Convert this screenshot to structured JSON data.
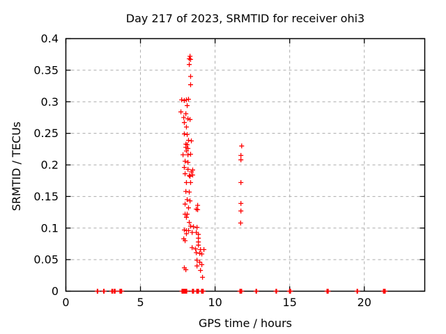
{
  "chart_data": {
    "type": "scatter",
    "title": "Day 217 of 2023, SRMTID for receiver ohi3",
    "xlabel": "GPS time / hours",
    "ylabel": "SRMTID / TECUs",
    "xlim": [
      0,
      24.05
    ],
    "ylim": [
      0,
      0.4
    ],
    "grid": true,
    "legend": "none",
    "background": "#ffffff",
    "grid_color": "#aaaaaa",
    "axis_color": "#000000",
    "marker": {
      "shape": "plus",
      "color": "#ff0000",
      "size": 7
    },
    "xticks": [
      {
        "value": 0,
        "label": "0"
      },
      {
        "value": 5,
        "label": "5"
      },
      {
        "value": 10,
        "label": "10"
      },
      {
        "value": 15,
        "label": "15"
      },
      {
        "value": 20,
        "label": "20"
      }
    ],
    "yticks": [
      {
        "value": 0,
        "label": "0"
      },
      {
        "value": 0.05,
        "label": "0.05"
      },
      {
        "value": 0.1,
        "label": "0.1"
      },
      {
        "value": 0.15,
        "label": "0.15"
      },
      {
        "value": 0.2,
        "label": "0.2"
      },
      {
        "value": 0.25,
        "label": "0.25"
      },
      {
        "value": 0.3,
        "label": "0.3"
      },
      {
        "value": 0.35,
        "label": "0.35"
      },
      {
        "value": 0.4,
        "label": "0.4"
      }
    ],
    "series": [
      {
        "name": "SRMTID",
        "points": [
          [
            8.32,
            0.372
          ],
          [
            8.27,
            0.368
          ],
          [
            8.36,
            0.367
          ],
          [
            8.27,
            0.359
          ],
          [
            8.36,
            0.34
          ],
          [
            8.36,
            0.327
          ],
          [
            7.76,
            0.303
          ],
          [
            7.94,
            0.302
          ],
          [
            8.08,
            0.303
          ],
          [
            8.22,
            0.304
          ],
          [
            8.13,
            0.294
          ],
          [
            7.71,
            0.284
          ],
          [
            8.04,
            0.281
          ],
          [
            7.9,
            0.275
          ],
          [
            8.18,
            0.273
          ],
          [
            8.32,
            0.272
          ],
          [
            7.94,
            0.267
          ],
          [
            8.08,
            0.26
          ],
          [
            7.94,
            0.249
          ],
          [
            8.13,
            0.248
          ],
          [
            8.22,
            0.239
          ],
          [
            8.41,
            0.238
          ],
          [
            8.04,
            0.233
          ],
          [
            8.13,
            0.232
          ],
          [
            8.04,
            0.228
          ],
          [
            8.18,
            0.226
          ],
          [
            8.08,
            0.222
          ],
          [
            7.85,
            0.216
          ],
          [
            8.18,
            0.216
          ],
          [
            8.36,
            0.217
          ],
          [
            7.99,
            0.206
          ],
          [
            8.18,
            0.204
          ],
          [
            7.94,
            0.196
          ],
          [
            8.18,
            0.193
          ],
          [
            8.5,
            0.192
          ],
          [
            8.41,
            0.189
          ],
          [
            7.99,
            0.186
          ],
          [
            8.27,
            0.183
          ],
          [
            8.5,
            0.184
          ],
          [
            8.32,
            0.182
          ],
          [
            8.08,
            0.172
          ],
          [
            8.36,
            0.172
          ],
          [
            8.04,
            0.158
          ],
          [
            8.27,
            0.157
          ],
          [
            8.13,
            0.145
          ],
          [
            8.32,
            0.143
          ],
          [
            7.99,
            0.138
          ],
          [
            8.83,
            0.136
          ],
          [
            8.22,
            0.132
          ],
          [
            8.74,
            0.13
          ],
          [
            8.83,
            0.129
          ],
          [
            7.99,
            0.122
          ],
          [
            8.13,
            0.122
          ],
          [
            8.08,
            0.117
          ],
          [
            8.27,
            0.109
          ],
          [
            8.36,
            0.103
          ],
          [
            8.55,
            0.102
          ],
          [
            8.79,
            0.101
          ],
          [
            7.94,
            0.097
          ],
          [
            8.08,
            0.096
          ],
          [
            8.22,
            0.096
          ],
          [
            8.46,
            0.093
          ],
          [
            8.74,
            0.093
          ],
          [
            8.08,
            0.091
          ],
          [
            8.88,
            0.09
          ],
          [
            8.88,
            0.084
          ],
          [
            7.9,
            0.083
          ],
          [
            7.99,
            0.08
          ],
          [
            8.88,
            0.078
          ],
          [
            8.88,
            0.073
          ],
          [
            8.46,
            0.069
          ],
          [
            8.69,
            0.067
          ],
          [
            9.02,
            0.066
          ],
          [
            9.25,
            0.066
          ],
          [
            8.74,
            0.061
          ],
          [
            8.97,
            0.06
          ],
          [
            9.11,
            0.059
          ],
          [
            8.79,
            0.049
          ],
          [
            8.97,
            0.046
          ],
          [
            9.11,
            0.042
          ],
          [
            8.79,
            0.04
          ],
          [
            7.94,
            0.037
          ],
          [
            8.04,
            0.034
          ],
          [
            9.02,
            0.033
          ],
          [
            9.16,
            0.022
          ],
          [
            11.78,
            0.23
          ],
          [
            11.73,
            0.215
          ],
          [
            11.73,
            0.208
          ],
          [
            11.73,
            0.172
          ],
          [
            11.73,
            0.139
          ],
          [
            11.73,
            0.127
          ],
          [
            11.71,
            0.108
          ],
          [
            2.1,
            0
          ],
          [
            2.14,
            0
          ],
          [
            2.53,
            0
          ],
          [
            2.57,
            0
          ],
          [
            3.08,
            0
          ],
          [
            3.14,
            0
          ],
          [
            3.24,
            0
          ],
          [
            3.3,
            0
          ],
          [
            3.62,
            0
          ],
          [
            3.68,
            0
          ],
          [
            3.74,
            0
          ],
          [
            7.78,
            0
          ],
          [
            7.82,
            0
          ],
          [
            7.86,
            0
          ],
          [
            7.9,
            0
          ],
          [
            7.94,
            0
          ],
          [
            7.98,
            0
          ],
          [
            8.02,
            0
          ],
          [
            8.06,
            0
          ],
          [
            8.1,
            0
          ],
          [
            8.48,
            0
          ],
          [
            8.52,
            0
          ],
          [
            8.56,
            0
          ],
          [
            8.77,
            0
          ],
          [
            8.81,
            0
          ],
          [
            8.85,
            0
          ],
          [
            8.89,
            0
          ],
          [
            9.09,
            0
          ],
          [
            9.13,
            0
          ],
          [
            9.17,
            0
          ],
          [
            9.21,
            0
          ],
          [
            11.66,
            0
          ],
          [
            11.7,
            0
          ],
          [
            11.74,
            0
          ],
          [
            11.78,
            0
          ],
          [
            12.74,
            0
          ],
          [
            12.78,
            0
          ],
          [
            14.08,
            0
          ],
          [
            14.12,
            0
          ],
          [
            14.98,
            0
          ],
          [
            15.02,
            0
          ],
          [
            15.06,
            0
          ],
          [
            17.5,
            0
          ],
          [
            17.54,
            0
          ],
          [
            17.58,
            0
          ],
          [
            19.51,
            0
          ],
          [
            19.55,
            0
          ],
          [
            21.28,
            0
          ],
          [
            21.32,
            0
          ],
          [
            21.36,
            0
          ],
          [
            21.4,
            0
          ]
        ]
      }
    ]
  }
}
